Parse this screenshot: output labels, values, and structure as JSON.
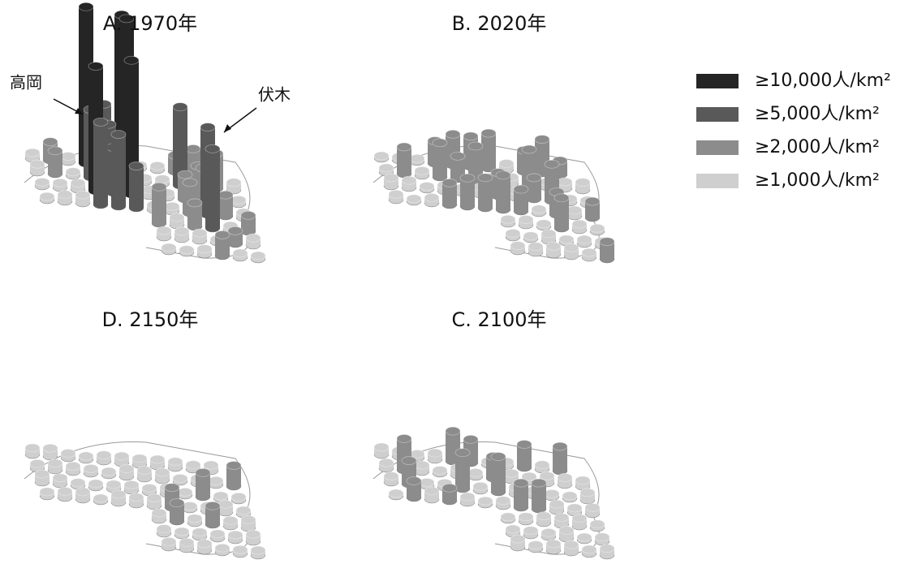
{
  "panels": [
    {
      "title": "A. 1970年"
    },
    {
      "title": "B. 2020年"
    },
    {
      "title": "D. 2150年"
    },
    {
      "title": "C. 2100年"
    }
  ],
  "annotations": [
    {
      "text": "高岡"
    },
    {
      "text": "伏木"
    }
  ],
  "legend": [
    {
      "label": "≥10,000人/km²",
      "color": "#252525"
    },
    {
      "label": "≥5,000人/km²",
      "color": "#595959"
    },
    {
      "label": "≥2,000人/km²",
      "color": "#8c8c8c"
    },
    {
      "label": "≥1,000人/km²",
      "color": "#cfcfcf"
    }
  ]
}
